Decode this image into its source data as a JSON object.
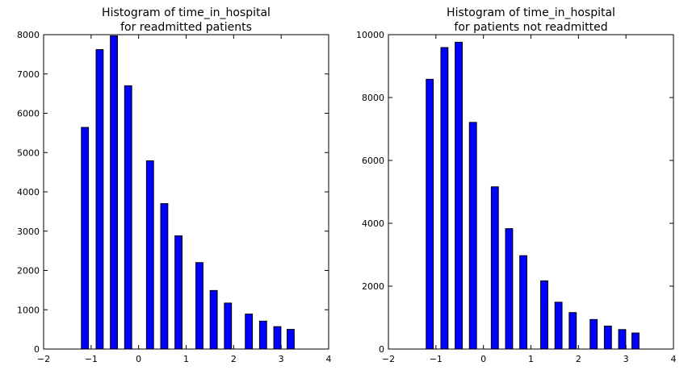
{
  "chart_data": [
    {
      "type": "bar",
      "title": [
        "Histogram of time_in_hospital",
        "for readmitted patients"
      ],
      "xlabel": "",
      "ylabel": "",
      "xlim": [
        -2,
        4
      ],
      "ylim": [
        0,
        8000
      ],
      "xticks": [
        -2,
        -1,
        0,
        1,
        2,
        3,
        4
      ],
      "xtick_labels": [
        "−2",
        "−1",
        "0",
        "1",
        "2",
        "3",
        "4"
      ],
      "yticks": [
        0,
        1000,
        2000,
        3000,
        4000,
        5000,
        6000,
        7000,
        8000
      ],
      "ytick_labels": [
        "0",
        "1000",
        "2000",
        "3000",
        "4000",
        "5000",
        "6000",
        "7000",
        "8000"
      ],
      "bar_width": 0.15,
      "bar_color": "#0000ff",
      "x": [
        -1.13,
        -0.82,
        -0.52,
        -0.22,
        0.24,
        0.54,
        0.84,
        1.28,
        1.58,
        1.88,
        2.32,
        2.62,
        2.92,
        3.2
      ],
      "values": [
        5640,
        7620,
        7970,
        6700,
        4790,
        3700,
        2880,
        2200,
        1490,
        1170,
        890,
        710,
        570,
        500
      ]
    },
    {
      "type": "bar",
      "title": [
        "Histogram of time_in_hospital",
        "for patients not readmitted"
      ],
      "xlabel": "",
      "ylabel": "",
      "xlim": [
        -2,
        4
      ],
      "ylim": [
        0,
        10000
      ],
      "xticks": [
        -2,
        -1,
        0,
        1,
        2,
        3,
        4
      ],
      "xtick_labels": [
        "−2",
        "−1",
        "0",
        "1",
        "2",
        "3",
        "4"
      ],
      "yticks": [
        0,
        2000,
        4000,
        6000,
        8000,
        10000
      ],
      "ytick_labels": [
        "0",
        "2000",
        "4000",
        "6000",
        "8000",
        "10000"
      ],
      "bar_width": 0.15,
      "bar_color": "#0000ff",
      "x": [
        -1.13,
        -0.82,
        -0.52,
        -0.22,
        0.24,
        0.54,
        0.84,
        1.28,
        1.58,
        1.88,
        2.32,
        2.62,
        2.92,
        3.2
      ],
      "values": [
        8580,
        9590,
        9760,
        7210,
        5160,
        3830,
        2970,
        2170,
        1490,
        1160,
        940,
        730,
        620,
        510
      ]
    }
  ]
}
